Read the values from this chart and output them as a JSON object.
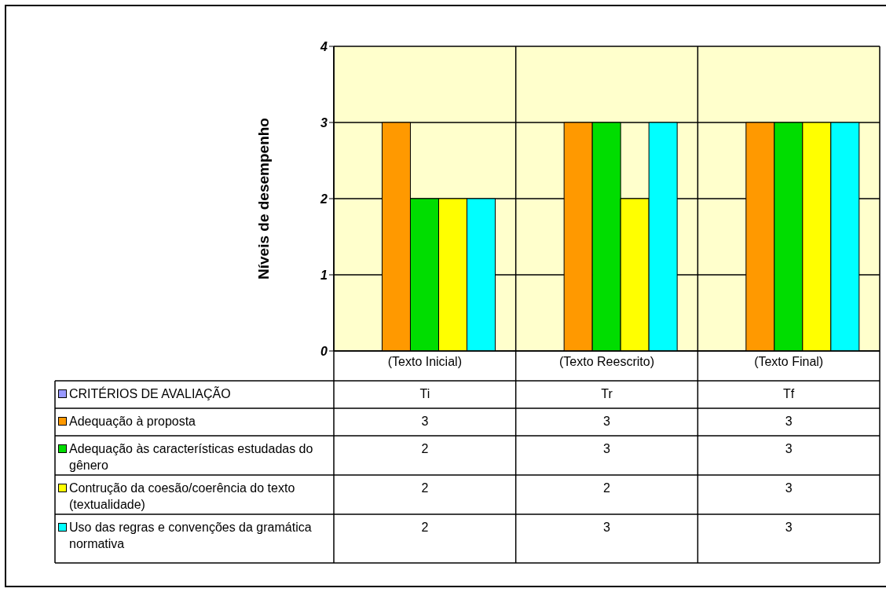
{
  "chart_data": {
    "type": "bar",
    "ylabel": "Níveis de desempenho",
    "categories": [
      "(Texto Inicial)",
      "(Texto Reescrito)",
      "(Texto Final)"
    ],
    "series": [
      {
        "name": "CRITÉRIOS DE AVALIAÇÃO",
        "color": "#9999ff",
        "values": [
          null,
          null,
          null
        ],
        "value_labels": [
          "Ti",
          "Tr",
          "Tf"
        ]
      },
      {
        "name": "Adequação à proposta",
        "color": "#ff9900",
        "values": [
          3,
          3,
          3
        ],
        "value_labels": [
          "3",
          "3",
          "3"
        ]
      },
      {
        "name": "Adequação às características estudadas do gênero",
        "color": "#00dd00",
        "values": [
          2,
          3,
          3
        ],
        "value_labels": [
          "2",
          "3",
          "3"
        ]
      },
      {
        "name": "Contrução da coesão/coerência do texto (textualidade)",
        "color": "#ffff00",
        "values": [
          2,
          2,
          3
        ],
        "value_labels": [
          "2",
          "2",
          "3"
        ]
      },
      {
        "name": "Uso das regras e convenções da gramática normativa",
        "color": "#00ffff",
        "values": [
          2,
          3,
          3
        ],
        "value_labels": [
          "2",
          "3",
          "3"
        ]
      }
    ],
    "ylim": [
      0,
      4
    ],
    "yticks": [
      0,
      1,
      2,
      3,
      4
    ],
    "grid": true,
    "legend": "bottom"
  }
}
